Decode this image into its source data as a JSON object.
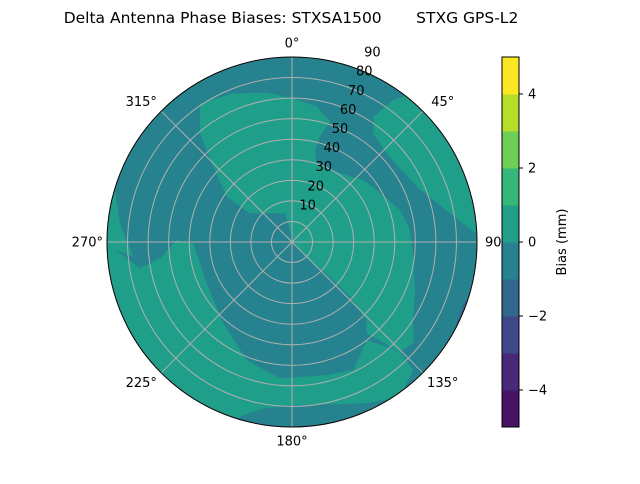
{
  "chart_data": {
    "type": "heatmap",
    "subtype": "polar-filled-contour",
    "title": "Delta Antenna Phase Biases: STXSA1500       STXG GPS-L2",
    "angular_ticks": [
      "0°",
      "45°",
      "90°",
      "135°",
      "180°",
      "225°",
      "270°",
      "315°"
    ],
    "angular_tick_values": [
      0,
      45,
      90,
      135,
      180,
      225,
      270,
      315
    ],
    "radial_ticks": [
      "10",
      "20",
      "30",
      "40",
      "50",
      "60",
      "70",
      "80",
      "90"
    ],
    "radial_tick_values": [
      10,
      20,
      30,
      40,
      50,
      60,
      70,
      80,
      90
    ],
    "radial_range": [
      0,
      90
    ],
    "grid": true,
    "colorbar": {
      "label": "Bias (mm)",
      "range": [
        -5,
        5
      ],
      "levels": [
        -5,
        -4,
        -3,
        -2,
        -1,
        0,
        1,
        2,
        3,
        4,
        5
      ],
      "ticks": [
        "−4",
        "−2",
        "0",
        "2",
        "4"
      ],
      "tick_values": [
        -4,
        -2,
        0,
        2,
        4
      ],
      "colormap": "viridis",
      "colors": [
        "#471365",
        "#482878",
        "#3e4989",
        "#31688e",
        "#26828e",
        "#1f9e89",
        "#35b779",
        "#6ece58",
        "#b5de2b",
        "#fde725"
      ],
      "placement": "right"
    },
    "dominant_levels": [
      "-1 to 0",
      "0 to 1"
    ],
    "minor_level": "-2 to -1"
  }
}
